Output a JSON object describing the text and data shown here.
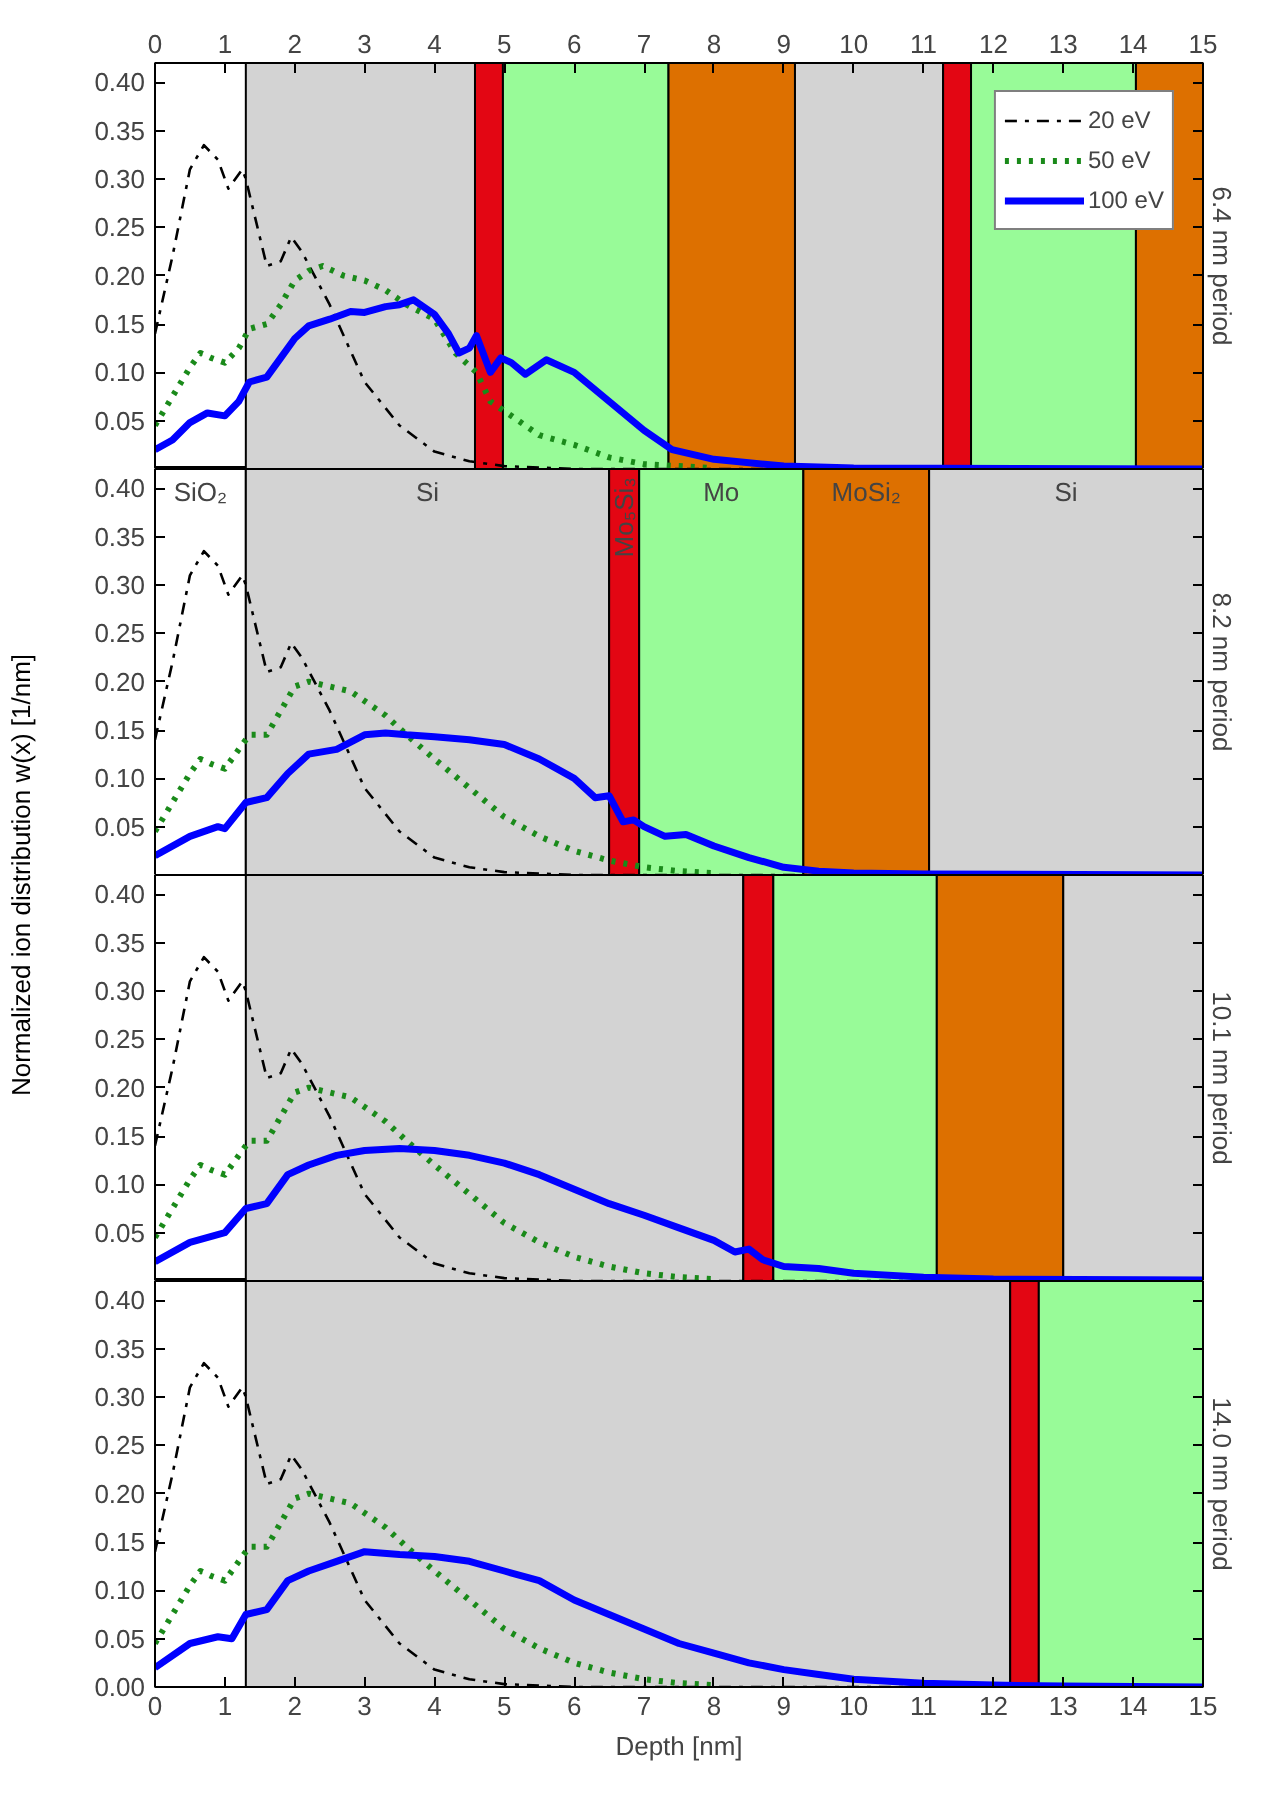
{
  "chart_data": [
    {
      "type": "line",
      "y2label": "6.4 nm period",
      "xlim": [
        0,
        15
      ],
      "xticks": [
        0,
        1,
        2,
        3,
        4,
        5,
        6,
        7,
        8,
        9,
        10,
        11,
        12,
        13,
        14,
        15
      ],
      "ylim": [
        0,
        0.42
      ],
      "yticks": [
        {
          "value": 0.05,
          "label": "0.05"
        },
        {
          "value": 0.1,
          "label": "0.10"
        },
        {
          "value": 0.15,
          "label": "0.15"
        },
        {
          "value": 0.2,
          "label": "0.20"
        },
        {
          "value": 0.25,
          "label": "0.25"
        },
        {
          "value": 0.3,
          "label": "0.30"
        },
        {
          "value": 0.35,
          "label": "0.35"
        },
        {
          "value": 0.4,
          "label": "0.40"
        }
      ],
      "grid": false,
      "legend": "top right",
      "tick_labels": "xy",
      "bands": [
        {
          "axis": "x",
          "from": 1.3,
          "to": 4.58,
          "label": null,
          "color": "#d3d3d3"
        },
        {
          "axis": "x",
          "from": 4.58,
          "to": 4.98,
          "label": null,
          "color": "#e30613"
        },
        {
          "axis": "x",
          "from": 4.98,
          "to": 7.35,
          "label": null,
          "color": "#98fb98"
        },
        {
          "axis": "x",
          "from": 7.35,
          "to": 9.16,
          "label": null,
          "color": "#dd7000"
        },
        {
          "axis": "x",
          "from": 9.16,
          "to": 11.28,
          "label": null,
          "color": "#d3d3d3"
        },
        {
          "axis": "x",
          "from": 11.28,
          "to": 11.68,
          "label": null,
          "color": "#e30613"
        },
        {
          "axis": "x",
          "from": 11.68,
          "to": 14.04,
          "label": null,
          "color": "#98fb98"
        },
        {
          "axis": "x",
          "from": 14.04,
          "to": 15,
          "label": null,
          "color": "#dd7000"
        }
      ],
      "series": [
        {
          "name": "20 eV",
          "color": "#000000",
          "line_style": "dashdot",
          "x": [
            0,
            0.25,
            0.5,
            0.7,
            0.9,
            1.05,
            1.25,
            1.3,
            1.5,
            1.6,
            1.8,
            1.95,
            2.1,
            2.5,
            3.0,
            3.5,
            4.0,
            4.5,
            5.0,
            6.0,
            15
          ],
          "values": [
            0.14,
            0.22,
            0.31,
            0.335,
            0.32,
            0.29,
            0.31,
            0.3,
            0.24,
            0.21,
            0.215,
            0.24,
            0.225,
            0.17,
            0.09,
            0.045,
            0.018,
            0.008,
            0.003,
            0,
            0
          ]
        },
        {
          "name": "50 eV",
          "color": "#1a8a1a",
          "line_style": "dotted",
          "x": [
            0,
            0.25,
            0.5,
            0.65,
            0.8,
            1.0,
            1.2,
            1.35,
            1.6,
            1.8,
            2.0,
            2.2,
            2.4,
            2.7,
            3.0,
            3.3,
            3.6,
            4.0,
            4.3,
            4.6,
            4.8,
            5.0,
            5.5,
            6.0,
            6.5,
            7.0,
            7.5,
            8.0
          ],
          "values": [
            0.045,
            0.075,
            0.105,
            0.12,
            0.115,
            0.11,
            0.125,
            0.145,
            0.15,
            0.17,
            0.195,
            0.205,
            0.21,
            0.2,
            0.195,
            0.185,
            0.17,
            0.155,
            0.12,
            0.1,
            0.07,
            0.06,
            0.035,
            0.025,
            0.012,
            0.005,
            0.003,
            0.001
          ]
        },
        {
          "name": "100 eV",
          "color": "#0000ff",
          "line_style": "solid",
          "x": [
            0,
            0.25,
            0.5,
            0.75,
            1.0,
            1.2,
            1.35,
            1.6,
            1.8,
            2.0,
            2.2,
            2.5,
            2.8,
            3.0,
            3.3,
            3.5,
            3.7,
            4.0,
            4.2,
            4.35,
            4.5,
            4.6,
            4.8,
            4.95,
            5.1,
            5.3,
            5.6,
            6.0,
            6.5,
            7.0,
            7.4,
            8.0,
            9.0,
            10.0,
            15
          ],
          "values": [
            0.02,
            0.03,
            0.048,
            0.058,
            0.055,
            0.07,
            0.09,
            0.095,
            0.115,
            0.135,
            0.148,
            0.155,
            0.163,
            0.162,
            0.168,
            0.17,
            0.175,
            0.16,
            0.14,
            0.12,
            0.125,
            0.138,
            0.1,
            0.115,
            0.11,
            0.098,
            0.113,
            0.1,
            0.07,
            0.04,
            0.02,
            0.01,
            0.003,
            0.001,
            0
          ]
        }
      ]
    },
    {
      "type": "line",
      "y2label": "8.2 nm period",
      "ylabel": "Normalized ion distribution w(x) [1/nm]",
      "xlim": [
        0,
        15
      ],
      "xticks": [
        0,
        1,
        2,
        3,
        4,
        5,
        6,
        7,
        8,
        9,
        10,
        11,
        12,
        13,
        14,
        15
      ],
      "ylim": [
        0,
        0.42
      ],
      "yticks": [
        {
          "value": 0.05,
          "label": "0.05"
        },
        {
          "value": 0.1,
          "label": "0.10"
        },
        {
          "value": 0.15,
          "label": "0.15"
        },
        {
          "value": 0.2,
          "label": "0.20"
        },
        {
          "value": 0.25,
          "label": "0.25"
        },
        {
          "value": 0.3,
          "label": "0.30"
        },
        {
          "value": 0.35,
          "label": "0.35"
        },
        {
          "value": 0.4,
          "label": "0.40"
        }
      ],
      "grid": false,
      "tick_labels": "y",
      "bands": [
        {
          "axis": "x",
          "from": 0,
          "to": 1.3,
          "label": "SiO₂",
          "color": "#ffffff"
        },
        {
          "axis": "x",
          "from": 1.3,
          "to": 6.5,
          "label": "Si",
          "color": "#d3d3d3"
        },
        {
          "axis": "x",
          "from": 6.5,
          "to": 6.93,
          "label": "Mo₅Si₃",
          "color": "#e30613"
        },
        {
          "axis": "x",
          "from": 6.93,
          "to": 9.28,
          "label": "Mo",
          "color": "#98fb98"
        },
        {
          "axis": "x",
          "from": 9.28,
          "to": 11.08,
          "label": "MoSi₂",
          "color": "#dd7000"
        },
        {
          "axis": "x",
          "from": 11.08,
          "to": 15,
          "label": "Si",
          "color": "#d3d3d3"
        }
      ],
      "series": [
        {
          "color": "#000000",
          "line_style": "dashdot",
          "x": [
            0,
            0.25,
            0.5,
            0.7,
            0.9,
            1.05,
            1.25,
            1.3,
            1.5,
            1.6,
            1.8,
            1.95,
            2.1,
            2.5,
            3.0,
            3.5,
            4.0,
            4.5,
            5.0,
            6.0,
            15
          ],
          "values": [
            0.14,
            0.22,
            0.31,
            0.335,
            0.32,
            0.29,
            0.31,
            0.3,
            0.24,
            0.21,
            0.215,
            0.24,
            0.225,
            0.17,
            0.09,
            0.045,
            0.018,
            0.008,
            0.003,
            0,
            0
          ]
        },
        {
          "color": "#1a8a1a",
          "line_style": "dotted",
          "x": [
            0,
            0.25,
            0.5,
            0.65,
            0.8,
            1.0,
            1.2,
            1.35,
            1.6,
            1.8,
            2.0,
            2.2,
            2.5,
            2.8,
            3.0,
            3.3,
            3.6,
            4.0,
            4.5,
            5.0,
            5.5,
            6.0,
            6.5,
            7.0,
            7.5,
            8.0
          ],
          "values": [
            0.045,
            0.075,
            0.105,
            0.12,
            0.115,
            0.11,
            0.13,
            0.145,
            0.145,
            0.17,
            0.195,
            0.2,
            0.195,
            0.19,
            0.18,
            0.165,
            0.145,
            0.12,
            0.09,
            0.06,
            0.04,
            0.025,
            0.015,
            0.008,
            0.004,
            0.002
          ]
        },
        {
          "color": "#0000ff",
          "line_style": "solid",
          "x": [
            0,
            0.5,
            0.9,
            1.0,
            1.3,
            1.6,
            1.9,
            2.2,
            2.6,
            3.0,
            3.3,
            3.6,
            4.0,
            4.5,
            5.0,
            5.5,
            6.0,
            6.3,
            6.5,
            6.7,
            6.85,
            7.0,
            7.3,
            7.6,
            8.0,
            8.5,
            9.0,
            9.5,
            10.0,
            11.0,
            15
          ],
          "values": [
            0.02,
            0.04,
            0.05,
            0.048,
            0.075,
            0.08,
            0.105,
            0.125,
            0.13,
            0.145,
            0.147,
            0.145,
            0.143,
            0.14,
            0.135,
            0.12,
            0.1,
            0.08,
            0.082,
            0.055,
            0.057,
            0.05,
            0.04,
            0.042,
            0.03,
            0.018,
            0.008,
            0.004,
            0.002,
            0.001,
            0
          ]
        }
      ]
    },
    {
      "type": "line",
      "y2label": "10.1 nm period",
      "xlim": [
        0,
        15
      ],
      "xticks": [
        0,
        1,
        2,
        3,
        4,
        5,
        6,
        7,
        8,
        9,
        10,
        11,
        12,
        13,
        14,
        15
      ],
      "ylim": [
        0,
        0.42
      ],
      "yticks": [
        {
          "value": 0.05,
          "label": "0.05"
        },
        {
          "value": 0.1,
          "label": "0.10"
        },
        {
          "value": 0.15,
          "label": "0.15"
        },
        {
          "value": 0.2,
          "label": "0.20"
        },
        {
          "value": 0.25,
          "label": "0.25"
        },
        {
          "value": 0.3,
          "label": "0.30"
        },
        {
          "value": 0.35,
          "label": "0.35"
        },
        {
          "value": 0.4,
          "label": "0.40"
        }
      ],
      "grid": false,
      "tick_labels": "y",
      "bands": [
        {
          "axis": "x",
          "from": 1.3,
          "to": 8.42,
          "label": null,
          "color": "#d3d3d3"
        },
        {
          "axis": "x",
          "from": 8.42,
          "to": 8.85,
          "label": null,
          "color": "#e30613"
        },
        {
          "axis": "x",
          "from": 8.85,
          "to": 11.19,
          "label": null,
          "color": "#98fb98"
        },
        {
          "axis": "x",
          "from": 11.19,
          "to": 13.0,
          "label": null,
          "color": "#dd7000"
        },
        {
          "axis": "x",
          "from": 13.0,
          "to": 15,
          "label": null,
          "color": "#d3d3d3"
        }
      ],
      "series": [
        {
          "color": "#000000",
          "line_style": "dashdot",
          "x": [
            0,
            0.25,
            0.5,
            0.7,
            0.9,
            1.05,
            1.25,
            1.3,
            1.5,
            1.6,
            1.8,
            1.95,
            2.1,
            2.5,
            3.0,
            3.5,
            4.0,
            4.5,
            5.0,
            6.0,
            15
          ],
          "values": [
            0.14,
            0.22,
            0.31,
            0.335,
            0.32,
            0.29,
            0.31,
            0.3,
            0.24,
            0.21,
            0.215,
            0.24,
            0.225,
            0.17,
            0.09,
            0.045,
            0.018,
            0.008,
            0.003,
            0,
            0
          ]
        },
        {
          "color": "#1a8a1a",
          "line_style": "dotted",
          "x": [
            0,
            0.25,
            0.5,
            0.65,
            0.8,
            1.0,
            1.2,
            1.35,
            1.6,
            1.8,
            2.0,
            2.2,
            2.5,
            2.8,
            3.0,
            3.3,
            3.6,
            4.0,
            4.5,
            5.0,
            5.5,
            6.0,
            6.5,
            7.0,
            7.5,
            8.0
          ],
          "values": [
            0.045,
            0.075,
            0.105,
            0.12,
            0.115,
            0.11,
            0.13,
            0.145,
            0.145,
            0.17,
            0.195,
            0.2,
            0.195,
            0.19,
            0.18,
            0.165,
            0.145,
            0.12,
            0.09,
            0.06,
            0.04,
            0.025,
            0.015,
            0.008,
            0.004,
            0.002
          ]
        },
        {
          "color": "#0000ff",
          "line_style": "solid",
          "x": [
            0,
            0.5,
            1.0,
            1.3,
            1.6,
            1.9,
            2.2,
            2.6,
            3.0,
            3.5,
            4.0,
            4.5,
            5.0,
            5.5,
            6.0,
            6.5,
            7.0,
            7.5,
            8.0,
            8.3,
            8.5,
            8.7,
            9.0,
            9.5,
            10.0,
            11.0,
            12.0,
            15
          ],
          "values": [
            0.02,
            0.04,
            0.05,
            0.075,
            0.08,
            0.11,
            0.12,
            0.13,
            0.135,
            0.137,
            0.135,
            0.13,
            0.122,
            0.11,
            0.095,
            0.08,
            0.068,
            0.055,
            0.042,
            0.03,
            0.033,
            0.022,
            0.015,
            0.013,
            0.008,
            0.004,
            0.002,
            0.001
          ]
        }
      ]
    },
    {
      "type": "line",
      "y2label": "14.0 nm period",
      "xlabel": "Depth [nm]",
      "xlim": [
        0,
        15
      ],
      "xticks": [
        0,
        1,
        2,
        3,
        4,
        5,
        6,
        7,
        8,
        9,
        10,
        11,
        12,
        13,
        14,
        15
      ],
      "ylim": [
        0,
        0.42
      ],
      "yticks": [
        {
          "value": 0,
          "label": "0.00"
        },
        {
          "value": 0.05,
          "label": "0.05"
        },
        {
          "value": 0.1,
          "label": "0.10"
        },
        {
          "value": 0.15,
          "label": "0.15"
        },
        {
          "value": 0.2,
          "label": "0.20"
        },
        {
          "value": 0.25,
          "label": "0.25"
        },
        {
          "value": 0.3,
          "label": "0.30"
        },
        {
          "value": 0.35,
          "label": "0.35"
        },
        {
          "value": 0.4,
          "label": "0.40"
        }
      ],
      "grid": false,
      "bands": [
        {
          "axis": "x",
          "from": 1.3,
          "to": 12.24,
          "label": null,
          "color": "#d3d3d3"
        },
        {
          "axis": "x",
          "from": 12.24,
          "to": 12.65,
          "label": null,
          "color": "#e30613"
        },
        {
          "axis": "x",
          "from": 12.65,
          "to": 15,
          "label": null,
          "color": "#98fb98"
        }
      ],
      "series": [
        {
          "color": "#000000",
          "line_style": "dashdot",
          "x": [
            0,
            0.25,
            0.5,
            0.7,
            0.9,
            1.05,
            1.25,
            1.3,
            1.5,
            1.6,
            1.8,
            1.95,
            2.1,
            2.5,
            3.0,
            3.5,
            4.0,
            4.5,
            5.0,
            6.0,
            15
          ],
          "values": [
            0.14,
            0.22,
            0.31,
            0.335,
            0.32,
            0.29,
            0.31,
            0.3,
            0.24,
            0.21,
            0.215,
            0.24,
            0.225,
            0.17,
            0.09,
            0.045,
            0.018,
            0.008,
            0.003,
            0,
            0
          ]
        },
        {
          "color": "#1a8a1a",
          "line_style": "dotted",
          "x": [
            0,
            0.25,
            0.5,
            0.65,
            0.8,
            1.0,
            1.2,
            1.35,
            1.6,
            1.8,
            2.0,
            2.2,
            2.5,
            2.8,
            3.0,
            3.3,
            3.6,
            4.0,
            4.5,
            5.0,
            5.5,
            6.0,
            6.5,
            7.0,
            7.5,
            8.0
          ],
          "values": [
            0.045,
            0.075,
            0.105,
            0.12,
            0.115,
            0.11,
            0.13,
            0.145,
            0.145,
            0.17,
            0.195,
            0.2,
            0.195,
            0.19,
            0.18,
            0.165,
            0.145,
            0.12,
            0.09,
            0.06,
            0.04,
            0.025,
            0.015,
            0.008,
            0.004,
            0.002
          ]
        },
        {
          "color": "#0000ff",
          "line_style": "solid",
          "x": [
            0,
            0.5,
            0.9,
            1.1,
            1.3,
            1.6,
            1.9,
            2.2,
            2.6,
            3.0,
            3.5,
            4.0,
            4.5,
            5.0,
            5.5,
            6.0,
            6.5,
            7.0,
            7.5,
            8.0,
            8.5,
            9.0,
            9.5,
            10.0,
            11.0,
            12.0,
            13.0,
            15
          ],
          "values": [
            0.02,
            0.045,
            0.052,
            0.05,
            0.075,
            0.08,
            0.11,
            0.12,
            0.13,
            0.14,
            0.137,
            0.135,
            0.13,
            0.12,
            0.11,
            0.09,
            0.075,
            0.06,
            0.045,
            0.035,
            0.025,
            0.018,
            0.013,
            0.008,
            0.004,
            0.002,
            0.001,
            0
          ]
        }
      ]
    }
  ]
}
